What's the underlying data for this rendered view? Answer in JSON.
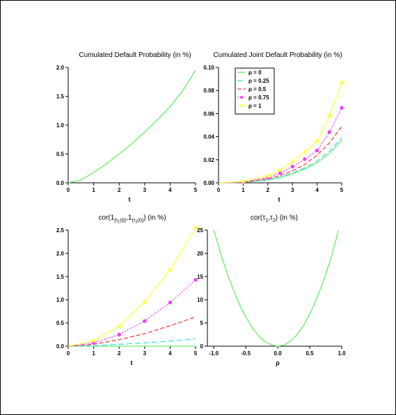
{
  "chart_data": [
    {
      "type": "line",
      "title": "Cumulated Default Probability (in %)",
      "xlabel": "t",
      "ylabel": "",
      "xlim": [
        0,
        5
      ],
      "ylim": [
        0,
        2.0
      ],
      "x_ticks": [
        "0",
        "1",
        "2",
        "3",
        "4",
        "5"
      ],
      "y_ticks": [
        "0.0",
        "0.5",
        "1.0",
        "1.5",
        "2.0"
      ],
      "series": [
        {
          "x": [
            0,
            0.5,
            1,
            1.5,
            2,
            2.5,
            3,
            3.5,
            4,
            4.5,
            5
          ],
          "values": [
            0,
            0.05,
            0.18,
            0.33,
            0.5,
            0.68,
            0.88,
            1.09,
            1.32,
            1.6,
            1.95
          ],
          "color": "#66ee66",
          "dash": "solid",
          "marker": "none"
        }
      ]
    },
    {
      "type": "line",
      "title": "Cumulated Joint Default Probability (in %)",
      "xlabel": "t",
      "ylabel": "",
      "xlim": [
        0,
        5
      ],
      "ylim": [
        0,
        0.1
      ],
      "x_ticks": [
        "0",
        "1",
        "2",
        "3",
        "4",
        "5"
      ],
      "y_ticks": [
        "0.00",
        "0.02",
        "0.04",
        "0.06",
        "0.08",
        "0.10"
      ],
      "legend": "top-left",
      "series": [
        {
          "name": "ρ = 0",
          "x": [
            0,
            1,
            2,
            2.5,
            3,
            3.5,
            4,
            4.5,
            5
          ],
          "values": [
            0,
            0.0003,
            0.0025,
            0.0045,
            0.0077,
            0.012,
            0.0174,
            0.0255,
            0.037
          ],
          "color": "#66ee66",
          "dash": "solid",
          "marker": "none"
        },
        {
          "name": "ρ = 0.25",
          "x": [
            0,
            1,
            2,
            2.5,
            3,
            3.5,
            4,
            4.5,
            5
          ],
          "values": [
            0,
            0.0004,
            0.0028,
            0.005,
            0.0085,
            0.013,
            0.019,
            0.0275,
            0.039
          ],
          "color": "#44ddee",
          "dash": "8,4",
          "marker": "none"
        },
        {
          "name": "ρ = 0.5",
          "x": [
            0,
            1,
            2,
            2.5,
            3,
            3.5,
            4,
            4.5,
            5
          ],
          "values": [
            0,
            0.0005,
            0.0035,
            0.0062,
            0.0105,
            0.016,
            0.024,
            0.0345,
            0.049
          ],
          "color": "#ee4444",
          "dash": "6,3",
          "marker": "none"
        },
        {
          "name": "ρ = 0.75",
          "x": [
            0,
            1,
            2,
            2.5,
            3,
            3.5,
            4,
            4.5,
            5
          ],
          "values": [
            0,
            0.0007,
            0.0047,
            0.0085,
            0.014,
            0.0205,
            0.028,
            0.044,
            0.065
          ],
          "color": "#ee44ee",
          "dash": "2,2",
          "marker": "circle"
        },
        {
          "name": "ρ = 1",
          "x": [
            0,
            1,
            2,
            2.5,
            3,
            3.5,
            4,
            4.5,
            5
          ],
          "values": [
            0,
            0.0012,
            0.006,
            0.011,
            0.018,
            0.027,
            0.036,
            0.058,
            0.087
          ],
          "color": "#ffff44",
          "dash": "solid",
          "marker": "circle"
        }
      ]
    },
    {
      "type": "line",
      "title": "cor(1{τ1(t)},1{τ2(t)}) (in %)",
      "title_parts": [
        "cor(1",
        "{τ",
        "1",
        "(t)}",
        ",1",
        "{τ",
        "2",
        "(t)}",
        ") (in %)"
      ],
      "xlabel": "t",
      "ylabel": "",
      "xlim": [
        0,
        5
      ],
      "ylim": [
        0,
        2.5
      ],
      "x_ticks": [
        "0",
        "1",
        "2",
        "3",
        "4",
        "5"
      ],
      "y_ticks": [
        "0.0",
        "0.5",
        "1.0",
        "1.5",
        "2.0",
        "2.5"
      ],
      "series": [
        {
          "x": [
            0,
            1,
            2,
            3,
            4,
            5
          ],
          "values": [
            0,
            0,
            0,
            0,
            0,
            0
          ],
          "color": "#66ee66",
          "dash": "solid",
          "marker": "none"
        },
        {
          "x": [
            0,
            1,
            2,
            3,
            4,
            5
          ],
          "values": [
            0,
            0.01,
            0.04,
            0.07,
            0.11,
            0.16
          ],
          "color": "#44ddee",
          "dash": "8,4",
          "marker": "none"
        },
        {
          "x": [
            0,
            1,
            2,
            3,
            4,
            5
          ],
          "values": [
            0,
            0.04,
            0.14,
            0.27,
            0.44,
            0.63
          ],
          "color": "#ee4444",
          "dash": "6,3",
          "marker": "none"
        },
        {
          "x": [
            0,
            1,
            2,
            3,
            4,
            5
          ],
          "values": [
            0,
            0.07,
            0.25,
            0.54,
            0.94,
            1.43
          ],
          "color": "#ee44ee",
          "dash": "2,2",
          "marker": "circle"
        },
        {
          "x": [
            0,
            1,
            2,
            3,
            4,
            5
          ],
          "values": [
            0,
            0.12,
            0.43,
            0.95,
            1.65,
            2.55
          ],
          "color": "#ffff44",
          "dash": "solid",
          "marker": "circle"
        }
      ]
    },
    {
      "type": "line",
      "title": "cor(τ1,τ2) (in %)",
      "title_parts": [
        "cor(τ",
        "1",
        ",τ",
        "2",
        ")  (in %)"
      ],
      "xlabel": "ρ",
      "ylabel": "",
      "xlim": [
        -1.1,
        1.0
      ],
      "ylim": [
        0,
        25
      ],
      "x_ticks": [
        "-1.0",
        "-0.5",
        "0.0",
        "0.5",
        "1.0"
      ],
      "x_tick_values": [
        -1.0,
        -0.5,
        0.0,
        0.5,
        1.0
      ],
      "y_ticks": [
        "0",
        "5",
        "10",
        "15",
        "20",
        "25"
      ],
      "series": [
        {
          "x": [
            -1.0,
            -0.9,
            -0.8,
            -0.7,
            -0.6,
            -0.5,
            -0.4,
            -0.3,
            -0.2,
            -0.1,
            0.0,
            0.1,
            0.2,
            0.3,
            0.4,
            0.5,
            0.6,
            0.7,
            0.8,
            0.9,
            0.95
          ],
          "values": [
            25,
            20.3,
            16.0,
            12.3,
            9.0,
            6.3,
            4.0,
            2.25,
            1.0,
            0.25,
            0,
            0.28,
            1.1,
            2.5,
            4.4,
            6.9,
            9.9,
            13.5,
            17.6,
            22.3,
            25
          ],
          "color": "#66ee66",
          "dash": "solid",
          "marker": "none"
        }
      ]
    }
  ]
}
